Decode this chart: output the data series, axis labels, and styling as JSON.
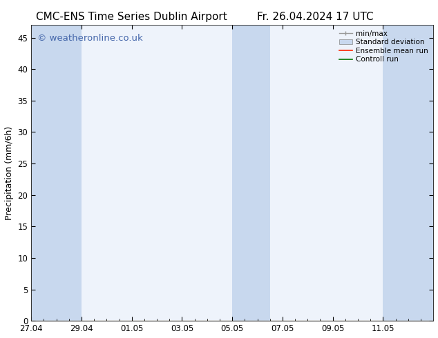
{
  "title_left": "CMC-ENS Time Series Dublin Airport",
  "title_right": "Fr. 26.04.2024 17 UTC",
  "ylabel": "Precipitation (mm/6h)",
  "watermark": "© weatheronline.co.uk",
  "watermark_color": "#4466aa",
  "ylim": [
    0,
    47
  ],
  "yticks": [
    0,
    5,
    10,
    15,
    20,
    25,
    30,
    35,
    40,
    45
  ],
  "xtick_labels": [
    "27.04",
    "29.04",
    "01.05",
    "03.05",
    "05.05",
    "07.05",
    "09.05",
    "11.05"
  ],
  "bg_color": "#ffffff",
  "plot_bg_color": "#eef3fb",
  "shade_color": "#c8d8ee",
  "legend_labels": [
    "min/max",
    "Standard deviation",
    "Ensemble mean run",
    "Controll run"
  ],
  "legend_colors": [
    "#aaaaaa",
    "#c8d8ee",
    "#ff0000",
    "#008800"
  ],
  "title_fontsize": 11,
  "label_fontsize": 9,
  "tick_fontsize": 8.5,
  "watermark_fontsize": 9.5
}
